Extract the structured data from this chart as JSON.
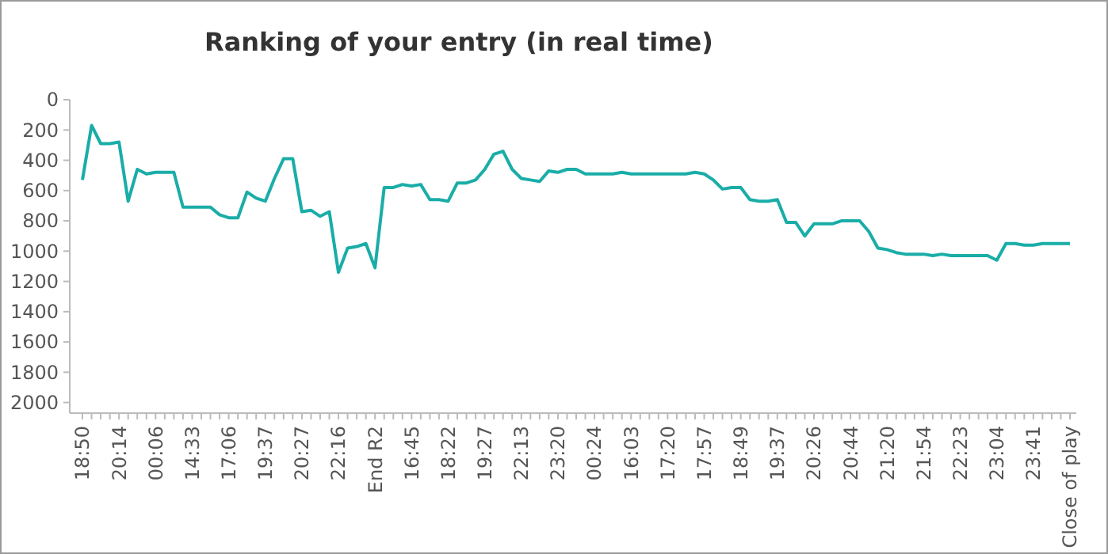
{
  "chart_data": {
    "type": "line",
    "title": "Ranking of your entry (in real time)",
    "categories": [
      "18:50",
      null,
      null,
      null,
      "20:14",
      null,
      null,
      null,
      "00:06",
      null,
      null,
      null,
      "14:33",
      null,
      null,
      null,
      "17:06",
      null,
      null,
      null,
      "19:37",
      null,
      null,
      null,
      "20:27",
      null,
      null,
      null,
      "22:16",
      null,
      null,
      null,
      "End R2",
      null,
      null,
      null,
      "16:45",
      null,
      null,
      null,
      "18:22",
      null,
      null,
      null,
      "19:27",
      null,
      null,
      null,
      "22:13",
      null,
      null,
      null,
      "23:20",
      null,
      null,
      null,
      "00:24",
      null,
      null,
      null,
      "16:03",
      null,
      null,
      null,
      "17:20",
      null,
      null,
      null,
      "17:57",
      null,
      null,
      null,
      "18:49",
      null,
      null,
      null,
      "19:37",
      null,
      null,
      null,
      "20:26",
      null,
      null,
      null,
      "20:44",
      null,
      null,
      null,
      "21:20",
      null,
      null,
      null,
      "21:54",
      null,
      null,
      null,
      "22:23",
      null,
      null,
      null,
      "23:04",
      null,
      null,
      null,
      "23:41",
      null,
      null,
      null,
      "Close of play"
    ],
    "series": [
      {
        "color": "#1aada8",
        "values": [
          530,
          170,
          290,
          290,
          280,
          670,
          460,
          490,
          480,
          480,
          480,
          710,
          710,
          710,
          710,
          760,
          780,
          780,
          610,
          650,
          670,
          520,
          390,
          390,
          740,
          730,
          770,
          740,
          1140,
          980,
          970,
          950,
          1110,
          580,
          580,
          560,
          570,
          560,
          660,
          660,
          670,
          550,
          550,
          530,
          460,
          360,
          340,
          460,
          520,
          530,
          540,
          470,
          480,
          460,
          460,
          490,
          490,
          490,
          490,
          480,
          490,
          490,
          490,
          490,
          490,
          490,
          490,
          480,
          490,
          530,
          590,
          580,
          580,
          660,
          670,
          670,
          660,
          810,
          810,
          900,
          820,
          820,
          820,
          800,
          800,
          800,
          870,
          980,
          990,
          1010,
          1020,
          1020,
          1020,
          1030,
          1020,
          1030,
          1030,
          1030,
          1030,
          1030,
          1060,
          950,
          950,
          960,
          960,
          950,
          950,
          950,
          950
        ]
      }
    ],
    "ylim": [
      2070,
      0
    ],
    "yticks": [
      0,
      200,
      400,
      600,
      800,
      1000,
      1200,
      1400,
      1600,
      1800,
      2000
    ],
    "grid": false,
    "marker": "none",
    "line_style": "solid"
  }
}
